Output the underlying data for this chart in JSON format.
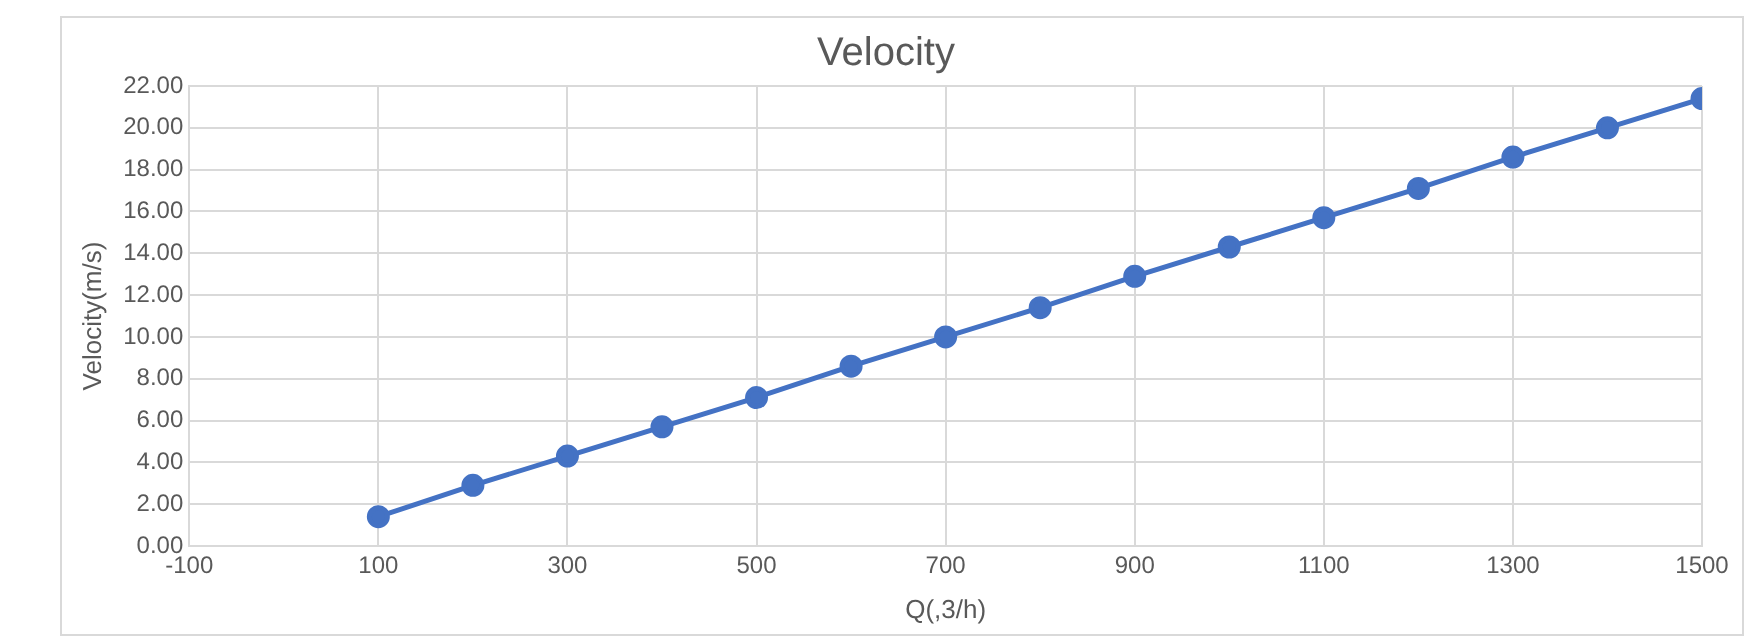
{
  "chart_data": {
    "type": "line",
    "title": "Velocity",
    "xlabel": "Q(,3/h)",
    "ylabel": "Velocity(m/s)",
    "x": [
      100,
      200,
      300,
      400,
      500,
      600,
      700,
      800,
      900,
      1000,
      1100,
      1200,
      1300,
      1400,
      1500
    ],
    "series": [
      {
        "color": "#4472c4",
        "values": [
          1.4,
          2.9,
          4.3,
          5.7,
          7.1,
          8.6,
          10.0,
          11.4,
          12.9,
          14.3,
          15.7,
          17.1,
          18.6,
          20.0,
          21.4
        ]
      }
    ],
    "xlim": [
      -100,
      1500
    ],
    "xticks": [
      -100,
      100,
      300,
      500,
      700,
      900,
      1100,
      1300,
      1500
    ],
    "ylim": [
      0,
      22
    ],
    "yticks": [
      {
        "value": 0,
        "label": "0.00"
      },
      {
        "value": 2,
        "label": "2.00"
      },
      {
        "value": 4,
        "label": "4.00"
      },
      {
        "value": 6,
        "label": "6.00"
      },
      {
        "value": 8,
        "label": "8.00"
      },
      {
        "value": 10,
        "label": "10.00"
      },
      {
        "value": 12,
        "label": "12.00"
      },
      {
        "value": 14,
        "label": "14.00"
      },
      {
        "value": 16,
        "label": "16.00"
      },
      {
        "value": 18,
        "label": "18.00"
      },
      {
        "value": 20,
        "label": "20.00"
      },
      {
        "value": 22,
        "label": "22.00"
      }
    ],
    "grid": true,
    "legend": false,
    "marker": "circle",
    "line_style": "solid"
  }
}
